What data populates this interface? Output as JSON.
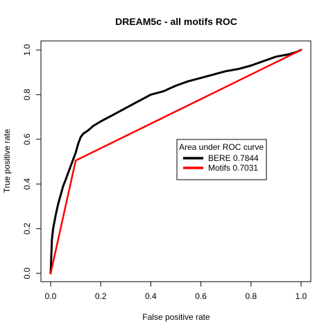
{
  "chart_data": {
    "type": "line",
    "title": "DREAM5c - all motifs ROC",
    "xlabel": "False positive rate",
    "ylabel": "True positive rate",
    "xlim": [
      0,
      1
    ],
    "ylim": [
      0,
      1
    ],
    "x_ticks": [
      "0.0",
      "0.2",
      "0.4",
      "0.6",
      "0.8",
      "1.0"
    ],
    "y_ticks": [
      "0.0",
      "0.2",
      "0.4",
      "0.6",
      "0.8",
      "1.0"
    ],
    "grid": false,
    "legend": {
      "title": "Area under ROC curve",
      "placement": "center-right"
    },
    "series": [
      {
        "name": "BERE 0.7844",
        "color": "#000000",
        "x": [
          0.0,
          0.005,
          0.01,
          0.02,
          0.03,
          0.04,
          0.05,
          0.06,
          0.07,
          0.08,
          0.09,
          0.1,
          0.11,
          0.12,
          0.13,
          0.15,
          0.17,
          0.2,
          0.25,
          0.3,
          0.35,
          0.4,
          0.45,
          0.5,
          0.55,
          0.6,
          0.65,
          0.7,
          0.75,
          0.8,
          0.85,
          0.9,
          0.95,
          0.98,
          1.0
        ],
        "y": [
          0.0,
          0.15,
          0.2,
          0.26,
          0.31,
          0.35,
          0.39,
          0.42,
          0.45,
          0.48,
          0.51,
          0.54,
          0.58,
          0.61,
          0.625,
          0.64,
          0.66,
          0.68,
          0.71,
          0.74,
          0.77,
          0.8,
          0.815,
          0.84,
          0.86,
          0.875,
          0.89,
          0.905,
          0.915,
          0.93,
          0.95,
          0.97,
          0.98,
          0.99,
          1.0
        ]
      },
      {
        "name": "Motifs 0.7031",
        "color": "#ff0000",
        "x": [
          0.0,
          0.1,
          1.0
        ],
        "y": [
          0.0,
          0.505,
          1.0
        ]
      }
    ]
  }
}
